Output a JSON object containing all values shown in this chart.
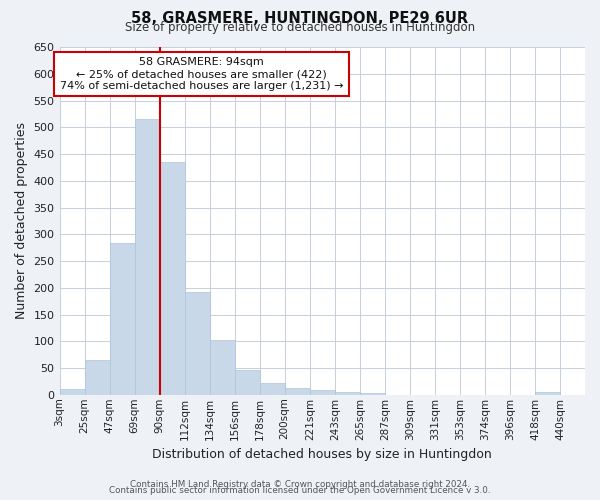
{
  "title": "58, GRASMERE, HUNTINGDON, PE29 6UR",
  "subtitle": "Size of property relative to detached houses in Huntingdon",
  "xlabel": "Distribution of detached houses by size in Huntingdon",
  "ylabel": "Number of detached properties",
  "footer1": "Contains HM Land Registry data © Crown copyright and database right 2024.",
  "footer2": "Contains public sector information licensed under the Open Government Licence v 3.0.",
  "annotation_title": "58 GRASMERE: 94sqm",
  "annotation_line1": "← 25% of detached houses are smaller (422)",
  "annotation_line2": "74% of semi-detached houses are larger (1,231) →",
  "bar_color": "#c8d8e8",
  "bar_edge_color": "#aec4d8",
  "marker_line_color": "#cc0000",
  "annotation_box_color": "#ffffff",
  "annotation_box_edge": "#cc0000",
  "bin_labels": [
    "3sqm",
    "25sqm",
    "47sqm",
    "69sqm",
    "90sqm",
    "112sqm",
    "134sqm",
    "156sqm",
    "178sqm",
    "200sqm",
    "221sqm",
    "243sqm",
    "265sqm",
    "287sqm",
    "309sqm",
    "331sqm",
    "353sqm",
    "374sqm",
    "396sqm",
    "418sqm",
    "440sqm"
  ],
  "bin_values": [
    10,
    65,
    283,
    515,
    435,
    193,
    102,
    46,
    22,
    13,
    8,
    5,
    3,
    0,
    0,
    0,
    0,
    0,
    0,
    5,
    0
  ],
  "marker_bin_index": 3,
  "ylim": [
    0,
    650
  ],
  "yticks": [
    0,
    50,
    100,
    150,
    200,
    250,
    300,
    350,
    400,
    450,
    500,
    550,
    600,
    650
  ],
  "background_color": "#eef2f7",
  "plot_bg_color": "#ffffff",
  "grid_color": "#c5d0dc"
}
